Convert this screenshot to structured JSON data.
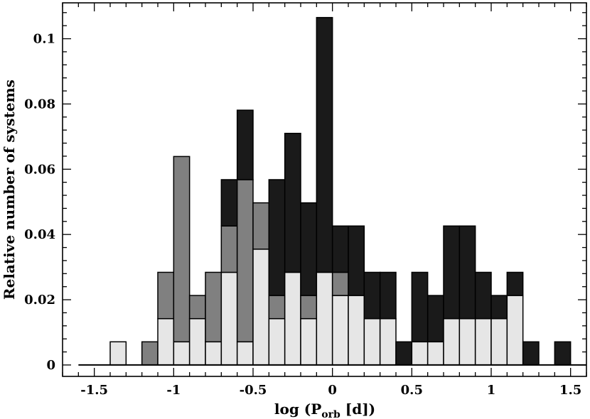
{
  "chart_data": {
    "type": "bar",
    "stacked": true,
    "title": "",
    "xlabel": {
      "main": "log (P",
      "sub": "orb",
      "tail": " [d])"
    },
    "ylabel": "Relative number of systems",
    "xlim": [
      -1.7,
      1.6
    ],
    "ylim": [
      -0.0035,
      0.111
    ],
    "bin_width": 0.1,
    "x_ticks": [
      -1.5,
      -1,
      -0.5,
      0,
      0.5,
      1,
      1.5
    ],
    "x_tick_labels": [
      "-1.5",
      "-1",
      "-0.5",
      "0",
      "0.5",
      "1",
      "1.5"
    ],
    "y_ticks": [
      0,
      0.02,
      0.04,
      0.06,
      0.08,
      0.1
    ],
    "y_tick_labels": [
      "0",
      "0.02",
      "0.04",
      "0.06",
      "0.08",
      "0.1"
    ],
    "bin_left_edges": [
      -1.4,
      -1.2,
      -1.1,
      -1.0,
      -0.9,
      -0.8,
      -0.7,
      -0.6,
      -0.5,
      -0.4,
      -0.3,
      -0.2,
      -0.1,
      0.0,
      0.1,
      0.2,
      0.3,
      0.4,
      0.5,
      0.6,
      0.7,
      0.8,
      0.9,
      1.0,
      1.1,
      1.2,
      1.4
    ],
    "series": [
      {
        "color": "#e6e6e6",
        "values": [
          0.0071,
          0,
          0.0142,
          0.0071,
          0.0142,
          0.0071,
          0.0284,
          0.0071,
          0.0355,
          0.0142,
          0.0284,
          0.0142,
          0.0284,
          0.0213,
          0.0213,
          0.0142,
          0.0142,
          0,
          0.0071,
          0.0071,
          0.0142,
          0.0142,
          0.0142,
          0.0142,
          0.0213,
          0,
          0
        ]
      },
      {
        "color": "#808080",
        "values": [
          0,
          0.0071,
          0.0142,
          0.0568,
          0.0071,
          0.0213,
          0.0142,
          0.0497,
          0.0142,
          0.0071,
          0,
          0.0071,
          0,
          0.0071,
          0,
          0,
          0,
          0,
          0,
          0,
          0,
          0,
          0,
          0,
          0,
          0,
          0
        ]
      },
      {
        "color": "#1a1a1a",
        "values": [
          0,
          0,
          0,
          0,
          0,
          0,
          0.0142,
          0.0213,
          0,
          0.0355,
          0.0426,
          0.0284,
          0.0781,
          0.0142,
          0.0213,
          0.0142,
          0.0142,
          0.0071,
          0.0213,
          0.0142,
          0.0284,
          0.0284,
          0.0142,
          0.0071,
          0.0071,
          0.0071,
          0.0071
        ]
      }
    ]
  }
}
